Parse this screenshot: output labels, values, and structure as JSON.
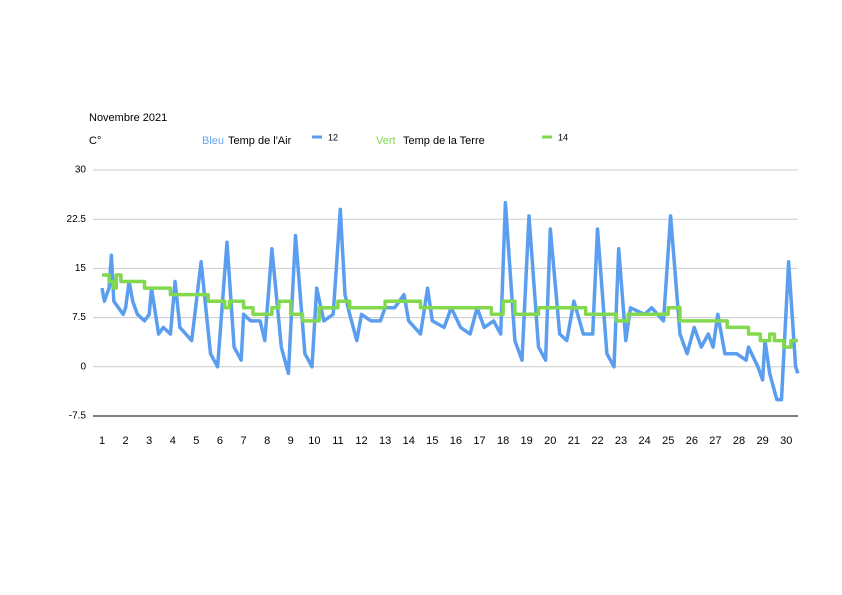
{
  "chart_data": {
    "type": "line",
    "title": "Novembre  2021",
    "y_label": "C°",
    "legend_notes": [
      {
        "color_word": "Bleu",
        "text": "Temp de l'Air"
      },
      {
        "color_word": "Vert",
        "text": "Temp de la Terre"
      }
    ],
    "xlim": [
      1,
      30.5
    ],
    "xticks": [
      1,
      2,
      3,
      4,
      5,
      6,
      7,
      8,
      9,
      10,
      11,
      12,
      13,
      14,
      15,
      16,
      17,
      18,
      19,
      20,
      21,
      22,
      23,
      24,
      25,
      26,
      27,
      28,
      29,
      30
    ],
    "ylim": [
      -7.5,
      30
    ],
    "yticks": [
      30,
      22.5,
      15,
      7.5,
      0,
      -7.5
    ],
    "grid": true,
    "series": [
      {
        "name": "12",
        "color": "#5b9ef0",
        "x": [
          1,
          1.1,
          1.2,
          1.3,
          1.4,
          1.5,
          1.7,
          1.9,
          2.0,
          2.15,
          2.3,
          2.5,
          2.8,
          3.0,
          3.1,
          3.4,
          3.6,
          3.9,
          4.1,
          4.3,
          4.8,
          5.2,
          5.6,
          5.9,
          6.3,
          6.6,
          6.9,
          7.0,
          7.3,
          7.7,
          7.9,
          8.2,
          8.6,
          8.9,
          9.2,
          9.6,
          9.9,
          10.1,
          10.4,
          10.8,
          11.1,
          11.3,
          11.5,
          11.8,
          12.0,
          12.4,
          12.8,
          13.0,
          13.4,
          13.8,
          14.0,
          14.5,
          14.8,
          15.0,
          15.5,
          15.8,
          16.2,
          16.6,
          16.9,
          17.2,
          17.6,
          17.9,
          18.1,
          18.5,
          18.8,
          19.1,
          19.5,
          19.8,
          20.0,
          20.4,
          20.7,
          21.0,
          21.4,
          21.8,
          22.0,
          22.4,
          22.7,
          22.9,
          23.2,
          23.4,
          24.0,
          24.3,
          24.8,
          25.1,
          25.5,
          25.8,
          26.1,
          26.4,
          26.7,
          26.9,
          27.1,
          27.4,
          27.9,
          28.3,
          28.4,
          28.8,
          29.0,
          29.1,
          29.3,
          29.6,
          29.8,
          30.1,
          30.4,
          30.5
        ],
        "values": [
          12,
          10,
          11,
          12,
          17,
          10,
          9,
          8,
          9,
          13,
          10,
          8,
          7,
          8,
          12,
          5,
          6,
          5,
          13,
          6,
          4,
          16,
          2,
          0,
          19,
          3,
          1,
          8,
          7,
          7,
          4,
          18,
          3,
          -1,
          20,
          2,
          0,
          12,
          7,
          8,
          24,
          11,
          8,
          4,
          8,
          7,
          7,
          9,
          9,
          11,
          7,
          5,
          12,
          7,
          6,
          9,
          6,
          5,
          9,
          6,
          7,
          5,
          25,
          4,
          1,
          23,
          3,
          1,
          21,
          5,
          4,
          10,
          5,
          5,
          21,
          2,
          0,
          18,
          4,
          9,
          8,
          9,
          7,
          23,
          5,
          2,
          6,
          3,
          5,
          3,
          8,
          2,
          2,
          1,
          3,
          0,
          -2,
          4,
          -1,
          -5,
          -5,
          16,
          0,
          -1
        ]
      },
      {
        "name": "14",
        "color": "#82d94d",
        "x": [
          1,
          1.3,
          1.3,
          1.5,
          1.5,
          1.6,
          1.6,
          1.8,
          1.8,
          2.8,
          2.8,
          3.9,
          3.9,
          5.5,
          5.5,
          6.2,
          6.2,
          6.4,
          6.4,
          7.0,
          7.0,
          7.4,
          7.4,
          8.2,
          8.2,
          8.5,
          8.5,
          9.0,
          9.0,
          9.5,
          9.5,
          10.2,
          10.2,
          11.0,
          11.0,
          11.5,
          11.5,
          13.0,
          13.0,
          14.5,
          14.5,
          17.5,
          17.5,
          18.0,
          18.0,
          18.5,
          18.5,
          19.5,
          19.5,
          21.5,
          21.5,
          22.8,
          22.8,
          23.3,
          23.3,
          25.0,
          25.0,
          25.5,
          25.5,
          27.5,
          27.5,
          28.4,
          28.4,
          28.9,
          28.9,
          29.3,
          29.3,
          29.5,
          29.5,
          29.9,
          29.9,
          30.2,
          30.2,
          30.5
        ],
        "values": [
          14,
          14,
          13,
          13,
          12,
          12,
          14,
          14,
          13,
          13,
          12,
          12,
          11,
          11,
          10,
          10,
          9,
          9,
          10,
          10,
          9,
          9,
          8,
          8,
          9,
          9,
          10,
          10,
          8,
          8,
          7,
          7,
          9,
          9,
          10,
          10,
          9,
          9,
          10,
          10,
          9,
          9,
          8,
          8,
          10,
          10,
          8,
          8,
          9,
          9,
          8,
          8,
          7,
          7,
          8,
          8,
          9,
          9,
          7,
          7,
          6,
          6,
          5,
          5,
          4,
          4,
          5,
          5,
          4,
          4,
          3,
          3,
          4,
          4
        ]
      }
    ]
  }
}
